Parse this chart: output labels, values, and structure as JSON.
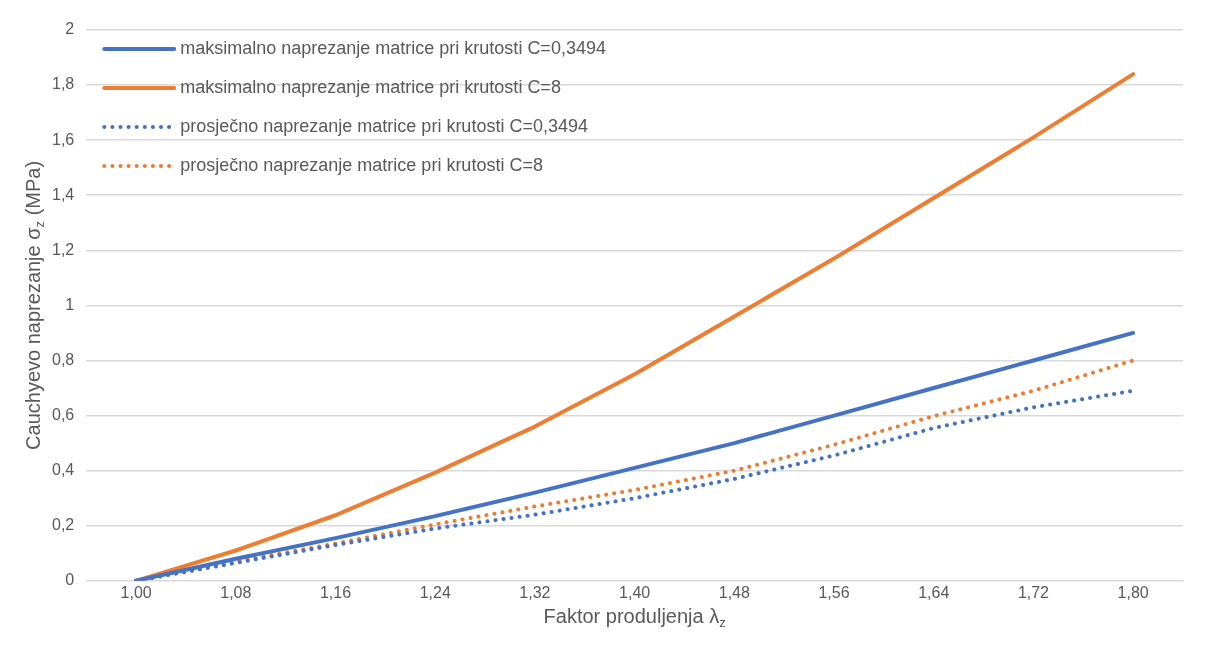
{
  "chart_data": {
    "type": "line",
    "xlabel": "Faktor produljenja λ$_{z}$",
    "ylabel": "Cauchyevo naprezanje σ$_{z}$ (MPa)",
    "x": [
      1.0,
      1.08,
      1.16,
      1.24,
      1.32,
      1.4,
      1.48,
      1.56,
      1.64,
      1.72,
      1.8
    ],
    "xlim": [
      0.96,
      1.84
    ],
    "xticks": [
      {
        "value": 1.0,
        "label": "1,00"
      },
      {
        "value": 1.08,
        "label": "1,08"
      },
      {
        "value": 1.16,
        "label": "1,16"
      },
      {
        "value": 1.24,
        "label": "1,24"
      },
      {
        "value": 1.32,
        "label": "1,32"
      },
      {
        "value": 1.4,
        "label": "1,40"
      },
      {
        "value": 1.48,
        "label": "1,48"
      },
      {
        "value": 1.56,
        "label": "1,56"
      },
      {
        "value": 1.64,
        "label": "1,64"
      },
      {
        "value": 1.72,
        "label": "1,72"
      },
      {
        "value": 1.8,
        "label": "1,80"
      }
    ],
    "ylim": [
      0,
      2
    ],
    "yticks": [
      0,
      {
        "value": 0.2,
        "label": "0,2"
      },
      {
        "value": 0.4,
        "label": "0,4"
      },
      {
        "value": 0.6,
        "label": "0,6"
      },
      {
        "value": 0.8,
        "label": "0,8"
      },
      1,
      {
        "value": 1.2,
        "label": "1,2"
      },
      {
        "value": 1.4,
        "label": "1,4"
      },
      {
        "value": 1.6,
        "label": "1,6"
      },
      {
        "value": 1.8,
        "label": "1,8"
      },
      2
    ],
    "grid": "y",
    "legend": "top left",
    "marker": "none",
    "series": [
      {
        "name": "maksimalno naprezanje matrice pri krutosti C=0,3494",
        "color": "#4472c4",
        "line_style": "solid",
        "values": [
          0,
          0.08,
          0.155,
          0.235,
          0.32,
          0.41,
          0.5,
          0.6,
          0.7,
          0.8,
          0.9
        ]
      },
      {
        "name": "maksimalno naprezanje matrice pri krutosti C=8",
        "color": "#ed7d31",
        "line_style": "solid",
        "values": [
          0,
          0.11,
          0.238,
          0.393,
          0.56,
          0.75,
          0.96,
          1.17,
          1.39,
          1.61,
          1.84
        ]
      },
      {
        "name": "prosječno naprezanje matrice pri krutosti C=0,3494",
        "color": "#4472c4",
        "line_style": "dotted",
        "values": [
          0,
          0.065,
          0.13,
          0.19,
          0.24,
          0.3,
          0.37,
          0.455,
          0.555,
          0.63,
          0.69
        ]
      },
      {
        "name": "prosječno naprezanje matrice pri krutosti C=8",
        "color": "#ed7d31",
        "line_style": "dotted",
        "values": [
          0,
          0.07,
          0.135,
          0.205,
          0.27,
          0.33,
          0.4,
          0.494,
          0.598,
          0.69,
          0.8
        ]
      }
    ]
  }
}
